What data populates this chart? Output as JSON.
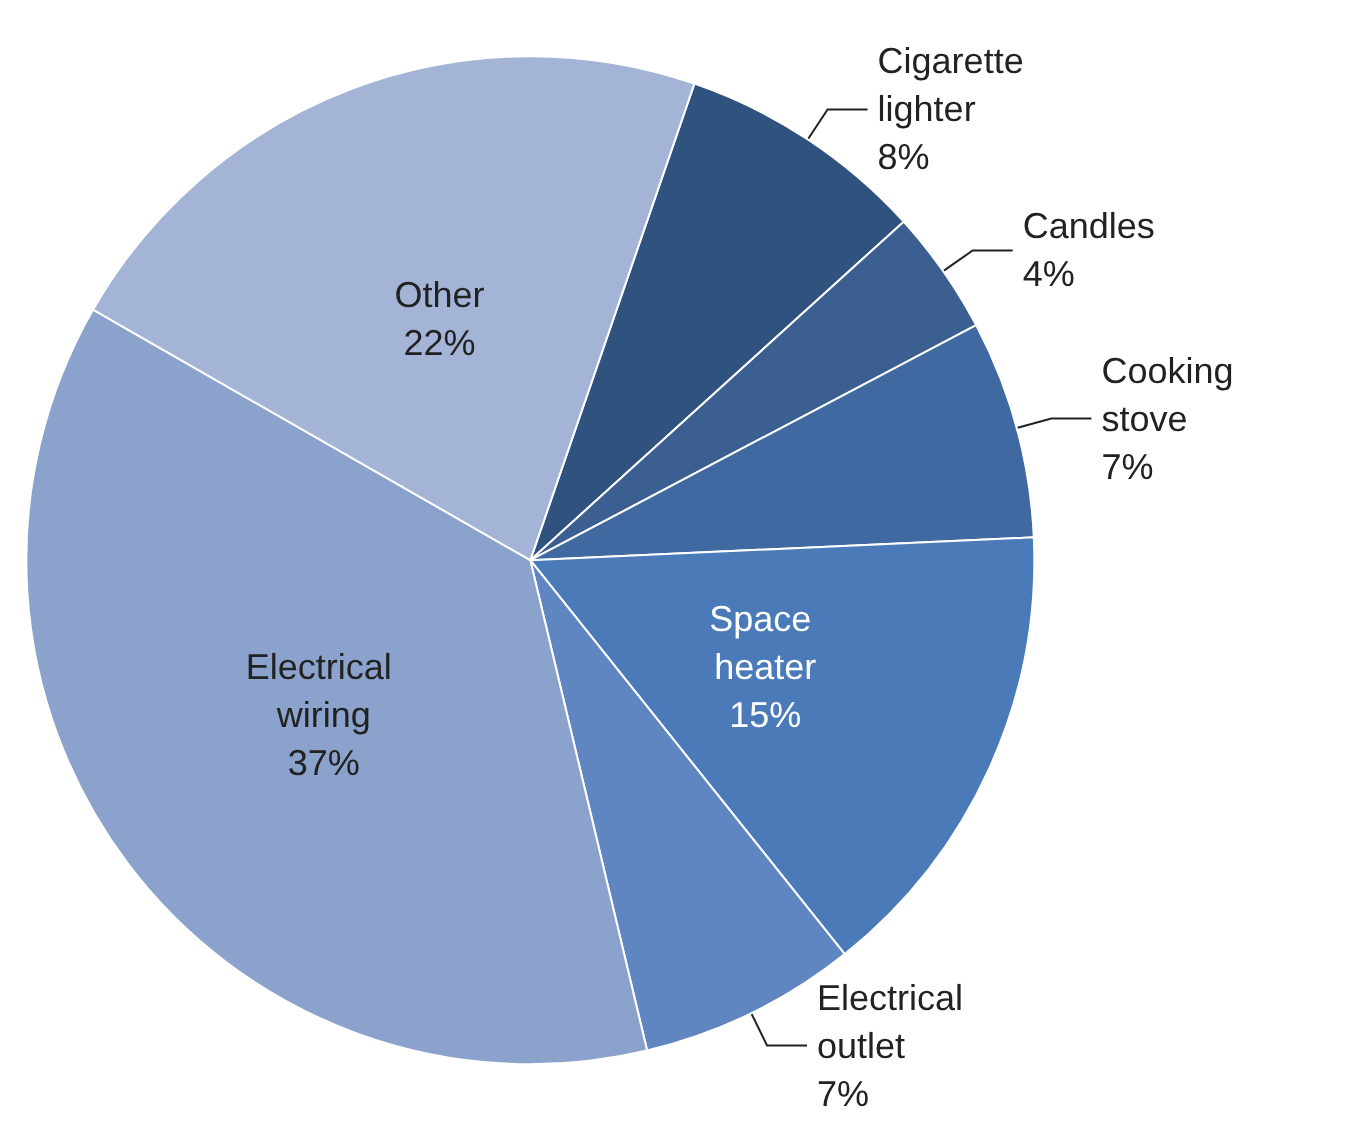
{
  "chart_data": {
    "type": "pie",
    "categories": [
      "Cigarette lighter",
      "Candles",
      "Cooking stove",
      "Space heater",
      "Electrical outlet",
      "Electrical wiring",
      "Other"
    ],
    "values": [
      8,
      4,
      7,
      15,
      7,
      37,
      22
    ],
    "value_labels": [
      "8%",
      "4%",
      "7%",
      "15%",
      "7%",
      "37%",
      "22%"
    ],
    "colors": [
      "#2f527e",
      "#3a5f90",
      "#3f69a0",
      "#4a7ab8",
      "#5f86c0",
      "#8aa2cc",
      "#a3b4d6"
    ],
    "legend": false
  }
}
